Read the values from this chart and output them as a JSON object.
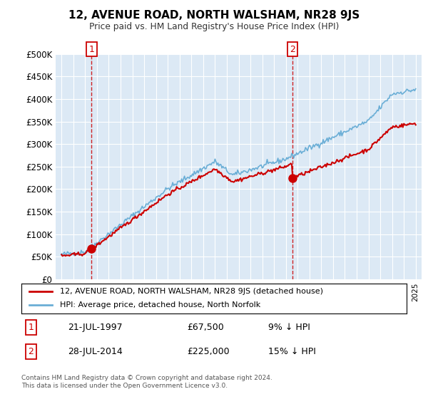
{
  "title": "12, AVENUE ROAD, NORTH WALSHAM, NR28 9JS",
  "subtitle": "Price paid vs. HM Land Registry's House Price Index (HPI)",
  "sale1_year": 1997.55,
  "sale1_price": 67500,
  "sale2_year": 2014.57,
  "sale2_price": 225000,
  "legend_line1": "12, AVENUE ROAD, NORTH WALSHAM, NR28 9JS (detached house)",
  "legend_line2": "HPI: Average price, detached house, North Norfolk",
  "annot1_date": "21-JUL-1997",
  "annot1_price": "£67,500",
  "annot1_hpi": "9% ↓ HPI",
  "annot2_date": "28-JUL-2014",
  "annot2_price": "£225,000",
  "annot2_hpi": "15% ↓ HPI",
  "footer": "Contains HM Land Registry data © Crown copyright and database right 2024.\nThis data is licensed under the Open Government Licence v3.0.",
  "hpi_color": "#6aaed6",
  "price_color": "#cc0000",
  "plot_bg_color": "#dce9f5",
  "ylim": [
    0,
    500000
  ],
  "yticks": [
    0,
    50000,
    100000,
    150000,
    200000,
    250000,
    300000,
    350000,
    400000,
    450000,
    500000
  ],
  "xlim": [
    1994.5,
    2025.5
  ],
  "xtick_start": 1995,
  "xtick_end": 2025
}
